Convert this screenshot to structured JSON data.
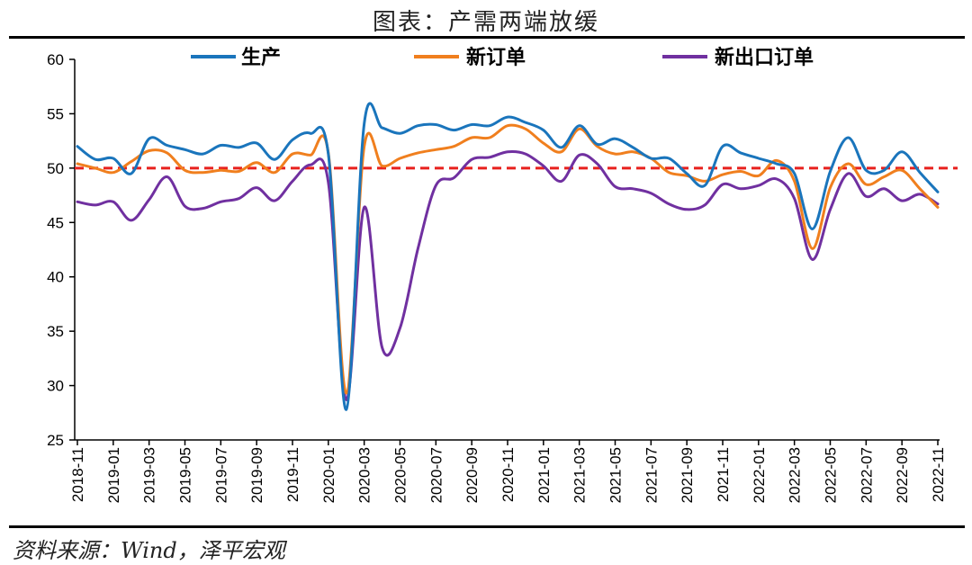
{
  "title": "图表：产需两端放缓",
  "source": "资料来源：Wind，泽平宏观",
  "chart_data": {
    "type": "line",
    "ylim": [
      25,
      60
    ],
    "yticks": [
      25,
      30,
      35,
      40,
      45,
      50,
      55,
      60
    ],
    "reference_line": {
      "y": 50,
      "color": "#e8211d",
      "style": "dashed"
    },
    "grid": false,
    "legend_position": "top",
    "x": [
      "2018-11",
      "2018-12",
      "2019-01",
      "2019-02",
      "2019-03",
      "2019-04",
      "2019-05",
      "2019-06",
      "2019-07",
      "2019-08",
      "2019-09",
      "2019-10",
      "2019-11",
      "2019-12",
      "2020-01",
      "2020-02",
      "2020-03",
      "2020-04",
      "2020-05",
      "2020-06",
      "2020-07",
      "2020-08",
      "2020-09",
      "2020-10",
      "2020-11",
      "2020-12",
      "2021-01",
      "2021-02",
      "2021-03",
      "2021-04",
      "2021-05",
      "2021-06",
      "2021-07",
      "2021-08",
      "2021-09",
      "2021-10",
      "2021-11",
      "2021-12",
      "2022-01",
      "2022-02",
      "2022-03",
      "2022-04",
      "2022-05",
      "2022-06",
      "2022-07",
      "2022-08",
      "2022-09",
      "2022-10",
      "2022-11"
    ],
    "xtick_labels": [
      "2018-11",
      "2019-01",
      "2019-03",
      "2019-05",
      "2019-07",
      "2019-09",
      "2019-11",
      "2020-01",
      "2020-03",
      "2020-05",
      "2020-07",
      "2020-09",
      "2020-11",
      "2021-01",
      "2021-03",
      "2021-05",
      "2021-07",
      "2021-09",
      "2021-11",
      "2022-01",
      "2022-03",
      "2022-05",
      "2022-07",
      "2022-09",
      "2022-11"
    ],
    "series": [
      {
        "name": "生产",
        "color": "#1a75bc",
        "values": [
          52.0,
          50.8,
          50.9,
          49.5,
          52.7,
          52.1,
          51.7,
          51.3,
          52.1,
          51.9,
          52.3,
          50.8,
          52.6,
          53.2,
          51.3,
          27.8,
          54.1,
          53.7,
          53.2,
          53.9,
          54.0,
          53.5,
          54.0,
          53.9,
          54.7,
          54.2,
          53.5,
          51.9,
          53.9,
          52.2,
          52.7,
          51.9,
          50.9,
          50.9,
          49.5,
          48.4,
          52.0,
          51.4,
          50.9,
          50.4,
          49.5,
          44.4,
          49.7,
          52.8,
          49.8,
          49.8,
          51.5,
          49.6,
          47.8
        ]
      },
      {
        "name": "新订单",
        "color": "#f07f1e",
        "values": [
          50.4,
          50.0,
          49.6,
          50.6,
          51.6,
          51.4,
          49.8,
          49.6,
          49.8,
          49.7,
          50.5,
          49.6,
          51.3,
          51.2,
          51.4,
          29.3,
          52.0,
          50.2,
          50.9,
          51.4,
          51.7,
          52.0,
          52.8,
          52.8,
          53.9,
          53.6,
          52.3,
          51.5,
          53.6,
          52.0,
          51.3,
          51.5,
          50.9,
          49.6,
          49.3,
          48.8,
          49.4,
          49.7,
          49.3,
          50.7,
          48.8,
          42.6,
          48.2,
          50.4,
          48.5,
          49.2,
          49.8,
          48.1,
          46.4
        ]
      },
      {
        "name": "新出口订单",
        "color": "#7030a0",
        "values": [
          46.9,
          46.6,
          46.9,
          45.2,
          47.1,
          49.2,
          46.5,
          46.3,
          46.9,
          47.2,
          48.2,
          47.0,
          48.8,
          50.3,
          48.7,
          28.7,
          46.4,
          33.5,
          35.3,
          42.6,
          48.4,
          49.1,
          50.8,
          51.0,
          51.5,
          51.3,
          50.2,
          48.8,
          51.2,
          50.4,
          48.3,
          48.1,
          47.7,
          46.7,
          46.2,
          46.6,
          48.5,
          48.1,
          48.4,
          49.0,
          47.2,
          41.6,
          46.2,
          49.5,
          47.4,
          48.1,
          47.0,
          47.6,
          46.7
        ]
      }
    ]
  }
}
